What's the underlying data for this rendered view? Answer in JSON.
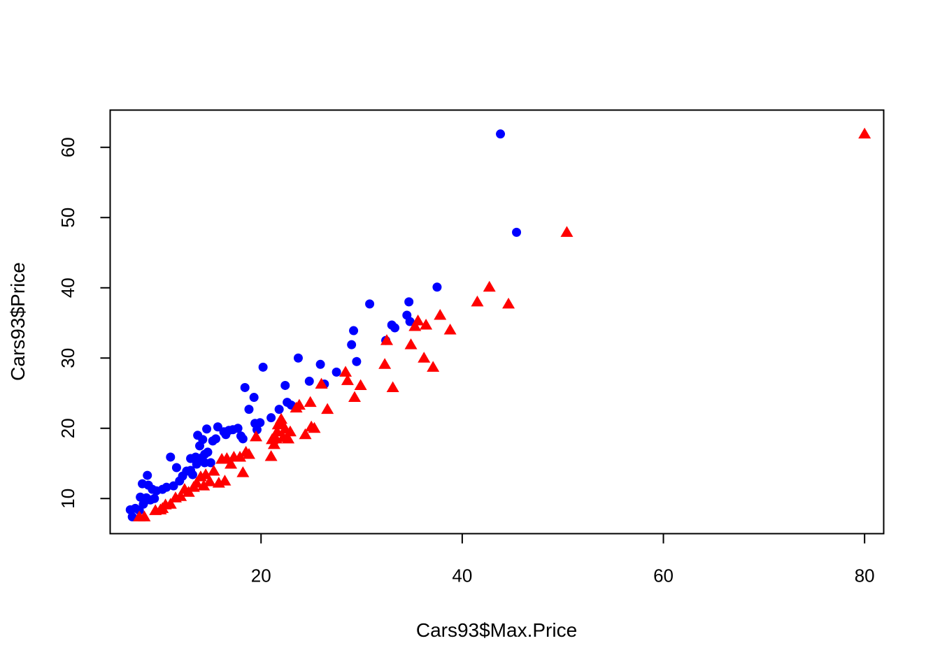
{
  "chart_data": {
    "type": "scatter",
    "title": "",
    "xlabel": "Cars93$Max.Price",
    "ylabel": "Cars93$Price",
    "xlim": [
      5.0,
      81.9
    ],
    "ylim": [
      5.0,
      65.3
    ],
    "xticks": [
      20,
      40,
      60,
      80
    ],
    "yticks": [
      10,
      20,
      30,
      40,
      50,
      60
    ],
    "grid": false,
    "series": [
      {
        "marker": "circle",
        "color": "#0000ff",
        "points": [
          [
            7.0,
            8.4
          ],
          [
            7.2,
            7.4
          ],
          [
            7.5,
            8.6
          ],
          [
            7.9,
            8.3
          ],
          [
            8.0,
            10.2
          ],
          [
            8.2,
            12.1
          ],
          [
            8.3,
            9.2
          ],
          [
            8.5,
            9.7
          ],
          [
            8.6,
            10.1
          ],
          [
            8.7,
            13.3
          ],
          [
            8.8,
            11.9
          ],
          [
            9.0,
            9.8
          ],
          [
            9.2,
            11.3
          ],
          [
            9.4,
            10.0
          ],
          [
            9.6,
            11.1
          ],
          [
            10.2,
            11.3
          ],
          [
            10.6,
            11.6
          ],
          [
            11.0,
            15.9
          ],
          [
            11.3,
            11.8
          ],
          [
            11.6,
            14.4
          ],
          [
            11.9,
            12.5
          ],
          [
            12.2,
            13.2
          ],
          [
            12.6,
            13.9
          ],
          [
            13.0,
            14.0
          ],
          [
            13.0,
            15.7
          ],
          [
            13.2,
            13.4
          ],
          [
            13.5,
            15.9
          ],
          [
            13.6,
            14.9
          ],
          [
            13.7,
            19.0
          ],
          [
            13.9,
            17.5
          ],
          [
            14.1,
            15.8
          ],
          [
            14.2,
            18.4
          ],
          [
            14.4,
            16.3
          ],
          [
            14.4,
            15.1
          ],
          [
            14.6,
            19.9
          ],
          [
            14.7,
            16.6
          ],
          [
            15.0,
            15.1
          ],
          [
            15.2,
            18.2
          ],
          [
            15.5,
            18.5
          ],
          [
            15.7,
            20.2
          ],
          [
            16.3,
            19.5
          ],
          [
            16.5,
            19.1
          ],
          [
            16.8,
            19.7
          ],
          [
            17.2,
            19.8
          ],
          [
            17.7,
            20.0
          ],
          [
            18.0,
            18.9
          ],
          [
            18.2,
            18.5
          ],
          [
            18.4,
            25.8
          ],
          [
            18.8,
            22.7
          ],
          [
            19.3,
            24.4
          ],
          [
            19.4,
            20.7
          ],
          [
            19.6,
            19.8
          ],
          [
            19.9,
            20.8
          ],
          [
            20.2,
            28.7
          ],
          [
            21.0,
            21.5
          ],
          [
            21.8,
            22.7
          ],
          [
            22.4,
            26.1
          ],
          [
            22.6,
            23.7
          ],
          [
            23.0,
            23.3
          ],
          [
            23.7,
            30.0
          ],
          [
            24.8,
            26.7
          ],
          [
            25.9,
            29.1
          ],
          [
            26.3,
            26.3
          ],
          [
            27.5,
            28.0
          ],
          [
            29.0,
            31.9
          ],
          [
            29.2,
            33.9
          ],
          [
            29.5,
            29.5
          ],
          [
            30.8,
            37.7
          ],
          [
            32.4,
            32.5
          ],
          [
            33.0,
            34.7
          ],
          [
            33.3,
            34.3
          ],
          [
            34.5,
            36.1
          ],
          [
            34.7,
            38.0
          ],
          [
            34.8,
            35.2
          ],
          [
            37.5,
            40.1
          ],
          [
            43.8,
            61.9
          ],
          [
            45.4,
            47.9
          ]
        ]
      },
      {
        "marker": "triangle",
        "color": "#ff0000",
        "points": [
          [
            7.9,
            7.4
          ],
          [
            8.4,
            7.4
          ],
          [
            9.5,
            8.3
          ],
          [
            10.0,
            8.4
          ],
          [
            10.2,
            8.6
          ],
          [
            10.5,
            9.1
          ],
          [
            11.0,
            9.2
          ],
          [
            11.5,
            10.1
          ],
          [
            12.0,
            10.3
          ],
          [
            12.4,
            11.3
          ],
          [
            12.8,
            10.9
          ],
          [
            13.3,
            11.6
          ],
          [
            13.6,
            12.2
          ],
          [
            14.0,
            13.1
          ],
          [
            14.3,
            11.8
          ],
          [
            14.5,
            13.4
          ],
          [
            14.9,
            12.4
          ],
          [
            15.3,
            13.9
          ],
          [
            15.8,
            12.2
          ],
          [
            16.1,
            15.6
          ],
          [
            16.4,
            12.5
          ],
          [
            16.6,
            15.7
          ],
          [
            17.0,
            14.9
          ],
          [
            17.3,
            15.9
          ],
          [
            17.9,
            15.9
          ],
          [
            18.2,
            13.7
          ],
          [
            18.5,
            16.6
          ],
          [
            18.8,
            16.3
          ],
          [
            19.5,
            18.8
          ],
          [
            21.0,
            16.0
          ],
          [
            21.1,
            18.4
          ],
          [
            21.3,
            17.7
          ],
          [
            21.5,
            18.5
          ],
          [
            21.6,
            19.5
          ],
          [
            21.7,
            20.5
          ],
          [
            21.9,
            20.8
          ],
          [
            22.0,
            21.3
          ],
          [
            22.2,
            18.7
          ],
          [
            22.4,
            19.9
          ],
          [
            22.7,
            18.5
          ],
          [
            22.9,
            19.5
          ],
          [
            23.5,
            22.9
          ],
          [
            23.8,
            23.3
          ],
          [
            24.4,
            19.1
          ],
          [
            24.9,
            23.7
          ],
          [
            25.0,
            20.2
          ],
          [
            25.3,
            20.0
          ],
          [
            26.0,
            26.3
          ],
          [
            26.6,
            22.7
          ],
          [
            28.4,
            28.0
          ],
          [
            28.6,
            26.8
          ],
          [
            29.3,
            24.4
          ],
          [
            29.9,
            26.1
          ],
          [
            32.3,
            29.1
          ],
          [
            32.5,
            32.5
          ],
          [
            33.1,
            25.8
          ],
          [
            34.9,
            31.9
          ],
          [
            35.3,
            34.5
          ],
          [
            35.6,
            35.3
          ],
          [
            36.2,
            30.0
          ],
          [
            36.4,
            34.7
          ],
          [
            37.1,
            28.7
          ],
          [
            37.8,
            36.1
          ],
          [
            38.8,
            34.0
          ],
          [
            41.5,
            38.0
          ],
          [
            42.7,
            40.1
          ],
          [
            44.6,
            37.7
          ],
          [
            50.4,
            47.9
          ],
          [
            80.0,
            61.9
          ]
        ]
      }
    ]
  }
}
